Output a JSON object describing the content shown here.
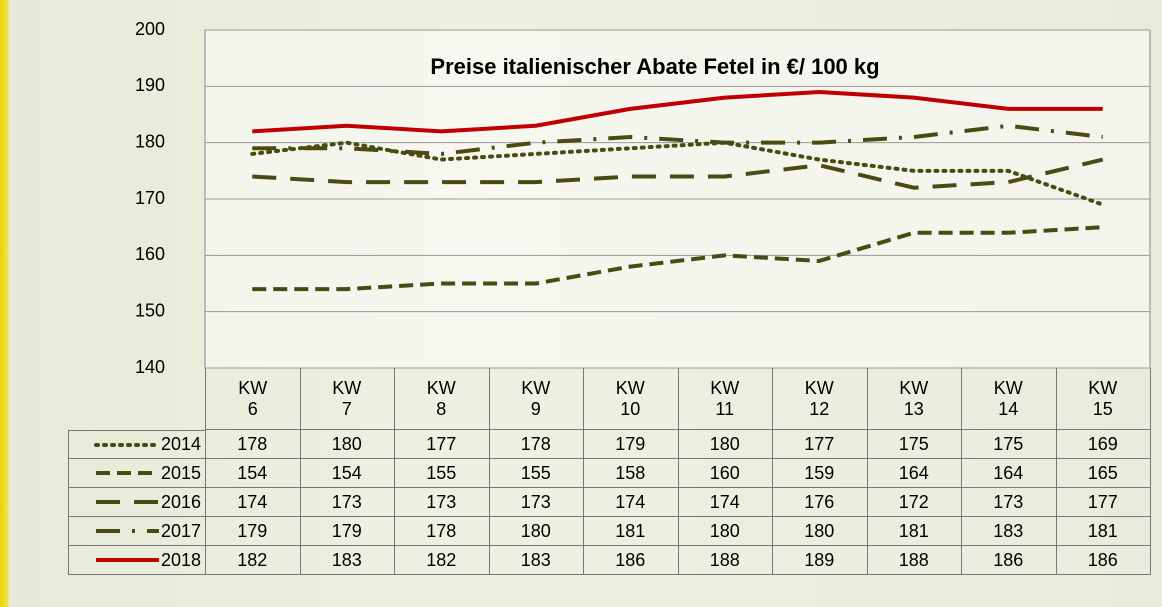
{
  "chart_data": {
    "type": "line",
    "title": "Preise italienischer Abate Fetel in €/ 100 kg",
    "categories": [
      "KW 6",
      "KW 7",
      "KW 8",
      "KW 9",
      "KW 10",
      "KW 11",
      "KW 12",
      "KW 13",
      "KW 14",
      "KW 15"
    ],
    "series": [
      {
        "name": "2014",
        "color": "#4b4a12",
        "dash": "dotted",
        "values": [
          178,
          180,
          177,
          178,
          179,
          180,
          177,
          175,
          175,
          169
        ]
      },
      {
        "name": "2015",
        "color": "#4b4a12",
        "dash": "dashed",
        "values": [
          154,
          154,
          155,
          155,
          158,
          160,
          159,
          164,
          164,
          165
        ]
      },
      {
        "name": "2016",
        "color": "#4b4a12",
        "dash": "long-dash",
        "values": [
          174,
          173,
          173,
          173,
          174,
          174,
          176,
          172,
          173,
          177
        ]
      },
      {
        "name": "2017",
        "color": "#4b4a12",
        "dash": "dash-dot",
        "values": [
          179,
          179,
          178,
          180,
          181,
          180,
          180,
          181,
          183,
          181
        ]
      },
      {
        "name": "2018",
        "color": "#c00000",
        "dash": "solid",
        "values": [
          182,
          183,
          182,
          183,
          186,
          188,
          189,
          188,
          186,
          186
        ]
      }
    ],
    "ylim": [
      140,
      200
    ],
    "yticks": [
      140,
      150,
      160,
      170,
      180,
      190,
      200
    ],
    "grid": true
  }
}
